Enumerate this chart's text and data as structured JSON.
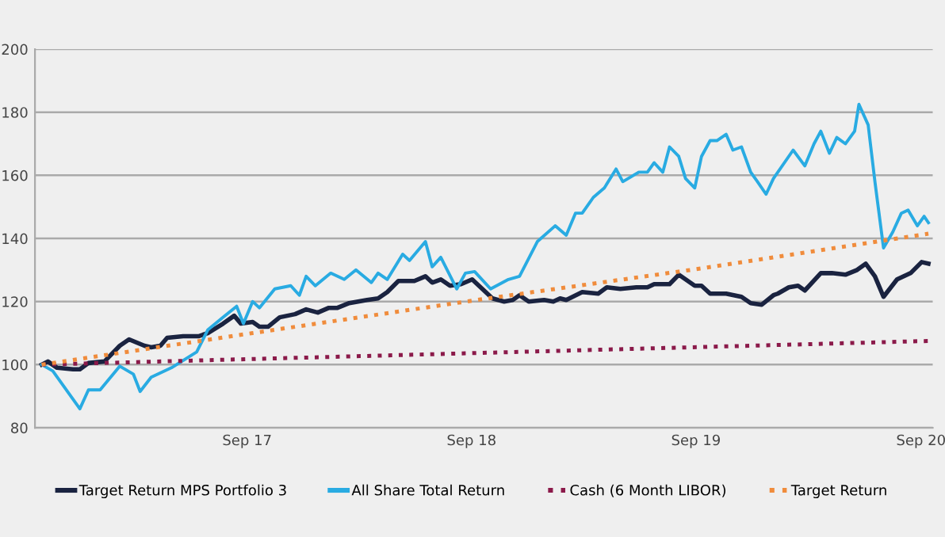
{
  "chart_data": {
    "type": "line",
    "xlim": [
      "2016-09-21",
      "2020-09-20"
    ],
    "ylim": [
      80,
      200
    ],
    "xticks": [
      {
        "value": "2017-09-01",
        "label": "Sep 17"
      },
      {
        "value": "2018-09-01",
        "label": "Sep 18"
      },
      {
        "value": "2019-09-01",
        "label": "Sep 19"
      },
      {
        "value": "2020-09-01",
        "label": "Sep 20"
      }
    ],
    "yticks": [
      80,
      100,
      120,
      140,
      160,
      180,
      200
    ],
    "grid": "y",
    "legend": "bottom",
    "marker": "none",
    "series": [
      {
        "name": "Target Return MPS Portfolio 3",
        "color": "#1a2340",
        "line_style": "solid",
        "x": [
          "2016-10-02",
          "2016-10-12",
          "2016-10-27",
          "2016-11-22",
          "2016-12-03",
          "2016-12-17",
          "2017-01-12",
          "2017-02-06",
          "2017-02-21",
          "2017-03-18",
          "2017-03-29",
          "2017-04-13",
          "2017-04-24",
          "2017-05-20",
          "2017-06-14",
          "2017-06-29",
          "2017-07-24",
          "2017-08-11",
          "2017-08-22",
          "2017-09-10",
          "2017-09-21",
          "2017-10-05",
          "2017-10-24",
          "2017-11-18",
          "2017-12-06",
          "2017-12-25",
          "2018-01-12",
          "2018-01-26",
          "2018-02-14",
          "2018-03-15",
          "2018-04-02",
          "2018-04-17",
          "2018-05-05",
          "2018-05-31",
          "2018-06-18",
          "2018-06-29",
          "2018-07-13",
          "2018-07-28",
          "2018-08-15",
          "2018-09-02",
          "2018-10-05",
          "2018-10-24",
          "2018-11-07",
          "2018-11-18",
          "2018-12-03",
          "2018-12-28",
          "2019-01-12",
          "2019-01-23",
          "2019-02-02",
          "2019-02-28",
          "2019-03-26",
          "2019-04-09",
          "2019-05-01",
          "2019-05-27",
          "2019-06-14",
          "2019-06-25",
          "2019-07-20",
          "2019-08-04",
          "2019-08-30",
          "2019-09-10",
          "2019-09-24",
          "2019-10-20",
          "2019-11-14",
          "2019-11-29",
          "2019-12-17",
          "2020-01-05",
          "2020-01-12",
          "2020-01-30",
          "2020-02-14",
          "2020-02-25",
          "2020-03-22",
          "2020-04-09",
          "2020-05-01",
          "2020-05-20",
          "2020-06-03",
          "2020-06-18",
          "2020-07-02",
          "2020-07-24",
          "2020-08-15",
          "2020-09-02",
          "2020-09-13"
        ],
        "values": [
          100,
          101,
          99,
          98.5,
          98.5,
          100.5,
          101,
          106,
          108,
          106,
          105.5,
          106,
          108.5,
          109,
          109,
          110,
          113,
          115.5,
          113,
          113.5,
          112,
          112,
          115,
          116,
          117.5,
          116.5,
          118,
          118,
          119.5,
          120.5,
          121,
          123,
          126.5,
          126.5,
          128,
          126,
          127,
          125,
          125.5,
          127,
          121,
          120,
          120.5,
          122,
          120,
          120.5,
          120,
          121,
          120.5,
          123,
          122.5,
          124.5,
          124,
          124.5,
          124.5,
          125.5,
          125.5,
          128.5,
          125,
          125,
          122.5,
          122.5,
          121.5,
          119.5,
          119,
          122,
          122.5,
          124.5,
          125,
          123.5,
          129,
          129,
          128.5,
          130,
          132,
          128,
          121.5,
          127,
          129,
          132.5,
          132
        ]
      },
      {
        "name": "All Share Total Return",
        "color": "#29abe2",
        "line_style": "solid",
        "x": [
          "2016-10-02",
          "2016-10-20",
          "2016-12-03",
          "2016-12-17",
          "2017-01-05",
          "2017-02-06",
          "2017-02-28",
          "2017-03-11",
          "2017-03-29",
          "2017-05-01",
          "2017-06-11",
          "2017-06-29",
          "2017-07-24",
          "2017-08-15",
          "2017-08-26",
          "2017-09-10",
          "2017-09-21",
          "2017-10-16",
          "2017-11-11",
          "2017-11-25",
          "2017-12-06",
          "2017-12-21",
          "2018-01-15",
          "2018-02-06",
          "2018-02-25",
          "2018-03-22",
          "2018-04-02",
          "2018-04-17",
          "2018-05-12",
          "2018-05-23",
          "2018-06-18",
          "2018-06-29",
          "2018-07-13",
          "2018-08-08",
          "2018-08-22",
          "2018-09-06",
          "2018-10-02",
          "2018-10-31",
          "2018-11-18",
          "2018-12-17",
          "2019-01-15",
          "2019-02-02",
          "2019-02-17",
          "2019-02-28",
          "2019-03-18",
          "2019-04-05",
          "2019-04-24",
          "2019-05-05",
          "2019-05-31",
          "2019-06-14",
          "2019-06-25",
          "2019-07-09",
          "2019-07-20",
          "2019-08-04",
          "2019-08-15",
          "2019-08-30",
          "2019-09-10",
          "2019-09-24",
          "2019-10-05",
          "2019-10-20",
          "2019-10-31",
          "2019-11-14",
          "2019-11-29",
          "2019-12-10",
          "2019-12-24",
          "2020-01-05",
          "2020-02-06",
          "2020-02-25",
          "2020-03-11",
          "2020-03-22",
          "2020-04-05",
          "2020-04-17",
          "2020-05-01",
          "2020-05-16",
          "2020-05-23",
          "2020-06-07",
          "2020-06-18",
          "2020-07-02",
          "2020-07-17",
          "2020-07-31",
          "2020-08-11",
          "2020-08-26",
          "2020-09-06",
          "2020-09-13"
        ],
        "values": [
          100,
          98,
          86,
          92,
          92,
          99.5,
          97,
          91.5,
          96,
          99,
          104,
          111,
          115,
          118.5,
          113,
          120,
          118,
          124,
          125,
          122,
          128,
          125,
          129,
          127,
          130,
          126,
          129,
          127,
          135,
          133,
          139,
          131,
          134,
          124,
          129,
          129.5,
          124,
          127,
          128,
          139,
          144,
          141,
          148,
          148,
          153,
          156,
          162,
          158,
          161,
          161,
          164,
          161,
          169,
          166,
          159,
          156,
          166,
          171,
          171,
          173,
          168,
          169,
          161,
          158,
          154,
          159,
          168,
          163,
          170,
          174,
          167,
          172,
          170,
          174,
          182.5,
          176,
          158,
          137,
          142,
          148,
          149,
          144,
          147,
          145
        ]
      },
      {
        "name": "Cash (6 Month LIBOR)",
        "color": "#8b1a4a",
        "line_style": "dotted",
        "x": [
          "2016-10-02",
          "2020-09-13"
        ],
        "values": [
          100,
          107.5
        ]
      },
      {
        "name": "Target Return",
        "color": "#f08c3c",
        "line_style": "dotted",
        "x": [
          "2016-10-02",
          "2017-09-10",
          "2018-09-10",
          "2019-09-10",
          "2020-09-13"
        ],
        "values": [
          100,
          110,
          120.5,
          130.5,
          141.5
        ]
      }
    ]
  }
}
